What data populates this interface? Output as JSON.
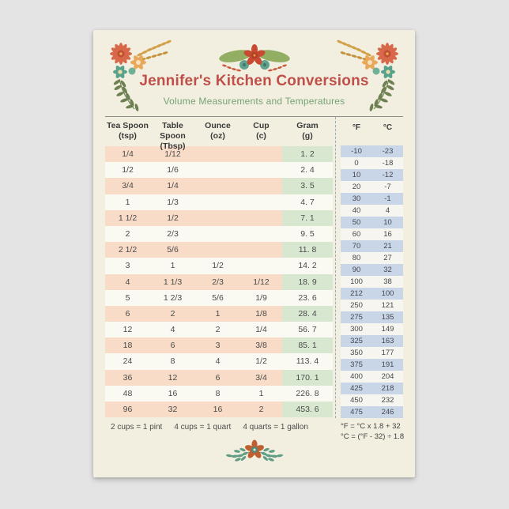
{
  "card": {
    "title": "Jennifer's Kitchen Conversions",
    "subtitle": "Volume Measurements and Temperatures"
  },
  "volume_table": {
    "columns": [
      {
        "name": "Tea Spoon",
        "unit": "(tsp)"
      },
      {
        "name": "Table Spoon",
        "unit": "(Tbsp)"
      },
      {
        "name": "Ounce",
        "unit": "(oz)"
      },
      {
        "name": "Cup",
        "unit": "(c)"
      },
      {
        "name": "Gram",
        "unit": "(g)"
      }
    ],
    "rows": [
      [
        "1/4",
        "1/12",
        "",
        "",
        "1. 2"
      ],
      [
        "1/2",
        "1/6",
        "",
        "",
        "2. 4"
      ],
      [
        "3/4",
        "1/4",
        "",
        "",
        "3. 5"
      ],
      [
        "1",
        "1/3",
        "",
        "",
        "4. 7"
      ],
      [
        "1 1/2",
        "1/2",
        "",
        "",
        "7. 1"
      ],
      [
        "2",
        "2/3",
        "",
        "",
        "9. 5"
      ],
      [
        "2 1/2",
        "5/6",
        "",
        "",
        "11. 8"
      ],
      [
        "3",
        "1",
        "1/2",
        "",
        "14. 2"
      ],
      [
        "4",
        "1 1/3",
        "2/3",
        "1/12",
        "18. 9"
      ],
      [
        "5",
        "1 2/3",
        "5/6",
        "1/9",
        "23. 6"
      ],
      [
        "6",
        "2",
        "1",
        "1/8",
        "28. 4"
      ],
      [
        "12",
        "4",
        "2",
        "1/4",
        "56. 7"
      ],
      [
        "18",
        "6",
        "3",
        "3/8",
        "85. 1"
      ],
      [
        "24",
        "8",
        "4",
        "1/2",
        "113. 4"
      ],
      [
        "36",
        "12",
        "6",
        "3/4",
        "170. 1"
      ],
      [
        "48",
        "16",
        "8",
        "1",
        "226. 8"
      ],
      [
        "96",
        "32",
        "16",
        "2",
        "453. 6"
      ]
    ],
    "footnotes": [
      "2 cups = 1 pint",
      "4 cups = 1 quart",
      "4 quarts = 1 gallon"
    ]
  },
  "temperature_table": {
    "columns": [
      "°F",
      "°C"
    ],
    "rows": [
      [
        "-10",
        "-23"
      ],
      [
        "0",
        "-18"
      ],
      [
        "10",
        "-12"
      ],
      [
        "20",
        "-7"
      ],
      [
        "30",
        "-1"
      ],
      [
        "40",
        "4"
      ],
      [
        "50",
        "10"
      ],
      [
        "60",
        "16"
      ],
      [
        "70",
        "21"
      ],
      [
        "80",
        "27"
      ],
      [
        "90",
        "32"
      ],
      [
        "100",
        "38"
      ],
      [
        "212",
        "100"
      ],
      [
        "250",
        "121"
      ],
      [
        "275",
        "135"
      ],
      [
        "300",
        "149"
      ],
      [
        "325",
        "163"
      ],
      [
        "350",
        "177"
      ],
      [
        "375",
        "191"
      ],
      [
        "400",
        "204"
      ],
      [
        "425",
        "218"
      ],
      [
        "450",
        "232"
      ],
      [
        "475",
        "246"
      ]
    ],
    "formulas": [
      "°F = °C x 1.8 + 32",
      "°C = (°F - 32) ÷ 1.8"
    ]
  },
  "decorations": {
    "top_left": "floral-bouquet-icon",
    "top_center": "floral-spray-icon",
    "top_right": "floral-bouquet-mirrored-icon",
    "bottom": "floral-sprig-icon"
  },
  "colors": {
    "page_background": "#e5e4e4",
    "card_background": "#f2efe0",
    "title": "#bf4f48",
    "subtitle": "#76a275",
    "row_pink": "#f8dcc7",
    "gram_green": "#d8e8d0",
    "temp_blue": "#c9d6e8",
    "text": "#4a4a4a"
  }
}
